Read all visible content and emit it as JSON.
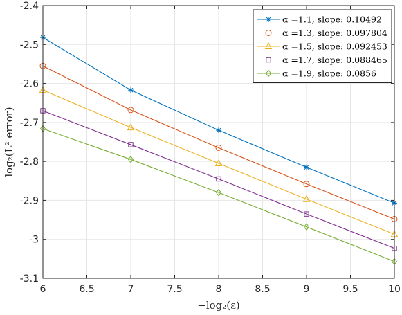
{
  "chart_data": {
    "type": "line",
    "title": "",
    "xlabel": "−log₂(ε)",
    "ylabel": "log₂(L² error)",
    "xlim": [
      6,
      10
    ],
    "ylim": [
      -3.1,
      -2.4
    ],
    "xticks": [
      "6",
      "6.5",
      "7",
      "7.5",
      "8",
      "8.5",
      "9",
      "9.5",
      "10"
    ],
    "yticks": [
      "-2.4",
      "-2.5",
      "-2.6",
      "-2.7",
      "-2.8",
      "-2.9",
      "-3",
      "-3.1"
    ],
    "grid": true,
    "legend_position": "top-right",
    "x": [
      6,
      7,
      8,
      9,
      10
    ],
    "series": [
      {
        "name": "α =1.1, slope: 0.10492",
        "marker": "asterisk",
        "color": "#0072BD",
        "values": [
          -2.482,
          -2.617,
          -2.72,
          -2.815,
          -2.907
        ]
      },
      {
        "name": "α =1.3, slope: 0.097804",
        "marker": "circle",
        "color": "#D95319",
        "values": [
          -2.555,
          -2.668,
          -2.765,
          -2.858,
          -2.948
        ]
      },
      {
        "name": "α =1.5, slope: 0.092453",
        "marker": "triangle",
        "color": "#EDB120",
        "values": [
          -2.617,
          -2.713,
          -2.805,
          -2.897,
          -2.987
        ]
      },
      {
        "name": "α =1.7, slope: 0.088465",
        "marker": "square",
        "color": "#7E2F8E",
        "values": [
          -2.67,
          -2.757,
          -2.845,
          -2.935,
          -3.023
        ]
      },
      {
        "name": "α =1.9, slope: 0.0856",
        "marker": "diamond",
        "color": "#77AC30",
        "values": [
          -2.716,
          -2.795,
          -2.88,
          -2.968,
          -3.057
        ]
      }
    ]
  }
}
